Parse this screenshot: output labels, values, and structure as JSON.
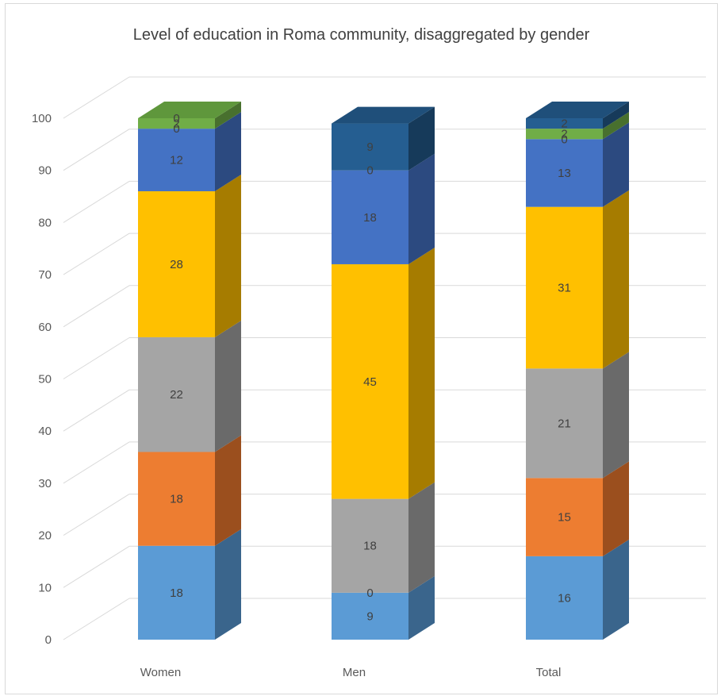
{
  "chart_data": {
    "type": "bar",
    "subtype": "stacked-3d",
    "title": "Level of education in Roma community, disaggregated by gender",
    "xlabel": "",
    "ylabel": "",
    "ylim": [
      0,
      100
    ],
    "yticks": [
      0,
      10,
      20,
      30,
      40,
      50,
      60,
      70,
      80,
      90,
      100
    ],
    "categories": [
      "Women",
      "Men",
      "Total"
    ],
    "grid": true,
    "legend": "none",
    "series": [
      {
        "values": [
          18,
          9,
          16
        ],
        "labels": [
          "18",
          "9",
          "16"
        ],
        "color": "#5b9bd5",
        "side_color": "#3a658c",
        "top_color": "#4a86bd"
      },
      {
        "values": [
          18,
          0,
          15
        ],
        "labels": [
          "18",
          "0",
          "15"
        ],
        "color": "#ed7d31",
        "side_color": "#9b4f1e",
        "top_color": "#d06a27"
      },
      {
        "values": [
          22,
          18,
          21
        ],
        "labels": [
          "22",
          "18",
          "21"
        ],
        "color": "#a5a5a5",
        "side_color": "#6a6a6a",
        "top_color": "#8f8f8f"
      },
      {
        "values": [
          28,
          45,
          31
        ],
        "labels": [
          "28",
          "45",
          "31"
        ],
        "color": "#ffc000",
        "side_color": "#a67c00",
        "top_color": "#e0a800"
      },
      {
        "values": [
          12,
          18,
          13
        ],
        "labels": [
          "12",
          "18",
          "13"
        ],
        "color": "#4472c4",
        "side_color": "#2c4a80",
        "top_color": "#3a63ad"
      },
      {
        "values": [
          0,
          0,
          0
        ],
        "labels": [
          "0",
          "0",
          "0"
        ],
        "color": "#2e5597",
        "side_color": "#1d3763",
        "top_color": "#264883"
      },
      {
        "values": [
          2,
          0,
          2
        ],
        "labels": [
          "2",
          "",
          "2"
        ],
        "color": "#70ad47",
        "side_color": "#48702e",
        "top_color": "#5f973c"
      },
      {
        "values": [
          0,
          9,
          2
        ],
        "labels": [
          "0",
          "9",
          "2"
        ],
        "color": "#255e91",
        "side_color": "#163a5a",
        "top_color": "#1f4f7a"
      }
    ]
  }
}
